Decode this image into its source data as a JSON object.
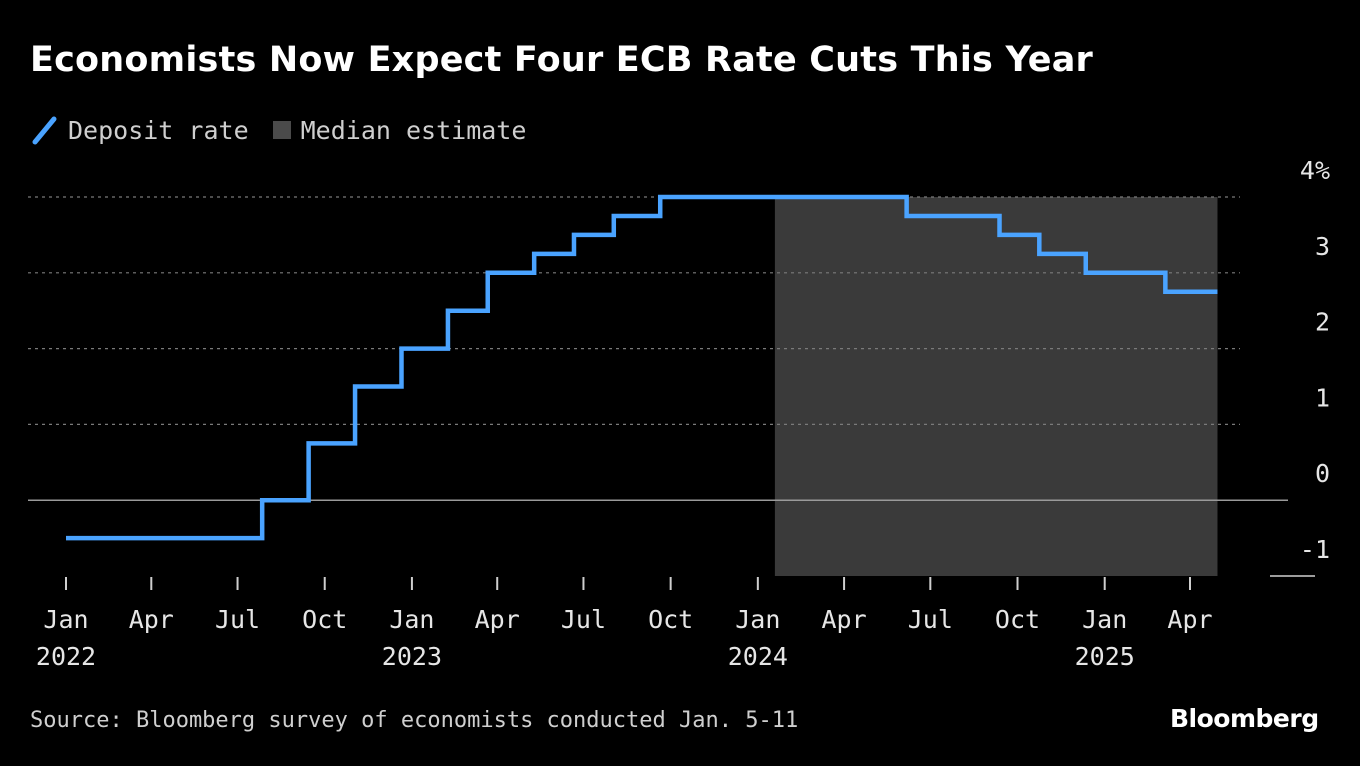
{
  "title": "Economists Now Expect Four ECB Rate Cuts This Year",
  "source": "Source: Bloomberg survey of economists conducted Jan. 5-11",
  "brand": "Bloomberg",
  "colors": {
    "line": "#4aa3ff",
    "shade": "#3a3a3a",
    "grid": "#7a7a7a"
  },
  "chart_data": {
    "type": "line",
    "title": "Economists Now Expect Four ECB Rate Cuts This Year",
    "xlabel": "",
    "ylabel": "",
    "ylim": [
      -1,
      4
    ],
    "y_ticks": [
      {
        "value": 4,
        "label": "4%"
      },
      {
        "value": 3,
        "label": "3"
      },
      {
        "value": 2,
        "label": "2"
      },
      {
        "value": 1,
        "label": "1"
      },
      {
        "value": 0,
        "label": "0"
      },
      {
        "value": -1,
        "label": "-1"
      }
    ],
    "x_ticks": [
      {
        "date": "2022-01",
        "label": "Jan",
        "year": "2022"
      },
      {
        "date": "2022-04",
        "label": "Apr",
        "year": ""
      },
      {
        "date": "2022-07",
        "label": "Jul",
        "year": ""
      },
      {
        "date": "2022-10",
        "label": "Oct",
        "year": ""
      },
      {
        "date": "2023-01",
        "label": "Jan",
        "year": "2023"
      },
      {
        "date": "2023-04",
        "label": "Apr",
        "year": ""
      },
      {
        "date": "2023-07",
        "label": "Jul",
        "year": ""
      },
      {
        "date": "2023-10",
        "label": "Oct",
        "year": ""
      },
      {
        "date": "2024-01",
        "label": "Jan",
        "year": "2024"
      },
      {
        "date": "2024-04",
        "label": "Apr",
        "year": ""
      },
      {
        "date": "2024-07",
        "label": "Jul",
        "year": ""
      },
      {
        "date": "2024-10",
        "label": "Oct",
        "year": ""
      },
      {
        "date": "2025-01",
        "label": "Jan",
        "year": "2025"
      },
      {
        "date": "2025-04",
        "label": "Apr",
        "year": ""
      }
    ],
    "grid": true,
    "legend": "top-left",
    "series": [
      {
        "name": "Deposit rate",
        "style": "step",
        "x": [
          "2022-01-01",
          "2022-07-27",
          "2022-09-14",
          "2022-11-02",
          "2022-12-21",
          "2023-02-08",
          "2023-03-22",
          "2023-05-10",
          "2023-06-21",
          "2023-08-02",
          "2023-09-20",
          "2024-01-19",
          "2024-06-06",
          "2024-09-12",
          "2024-10-24",
          "2024-12-12",
          "2025-03-06",
          "2025-04-30"
        ],
        "values": [
          -0.5,
          0.0,
          0.75,
          1.5,
          2.0,
          2.5,
          3.0,
          3.25,
          3.5,
          3.75,
          4.0,
          4.0,
          3.75,
          3.5,
          3.25,
          3.0,
          2.75,
          2.75
        ]
      }
    ],
    "shaded_regions": [
      {
        "name": "Median estimate",
        "x_start": "2024-01-19",
        "x_end": "2025-04-30"
      }
    ]
  }
}
